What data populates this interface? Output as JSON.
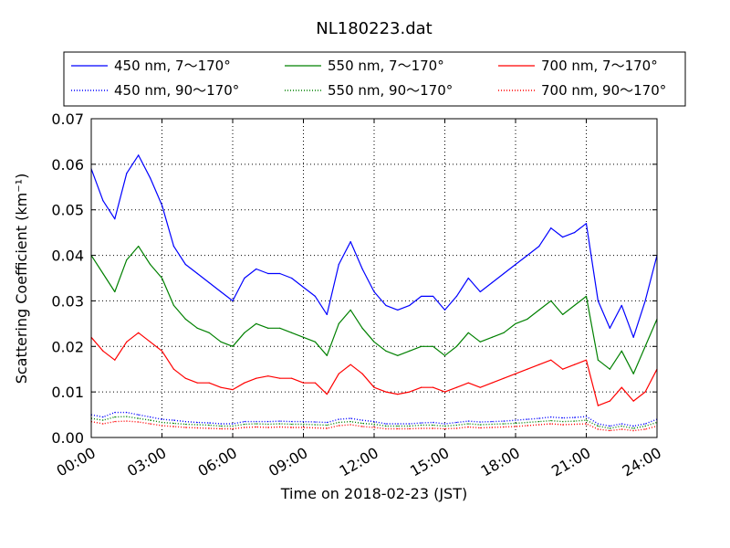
{
  "chart_data": {
    "type": "line",
    "title": "NL180223.dat",
    "xlabel": "Time on 2018-02-23 (JST)",
    "ylabel": "Scattering Coefficient (km⁻¹)",
    "x_ticks": [
      "00:00",
      "03:00",
      "06:00",
      "09:00",
      "12:00",
      "15:00",
      "18:00",
      "21:00",
      "24:00"
    ],
    "y_ticks": [
      "0.00",
      "0.01",
      "0.02",
      "0.03",
      "0.04",
      "0.05",
      "0.06",
      "0.07"
    ],
    "xlim_hours": [
      0,
      24
    ],
    "ylim": [
      0,
      0.07
    ],
    "grid": true,
    "legend_position": "top, outside plot, 3 columns",
    "x": [
      0.0,
      0.5,
      1.0,
      1.5,
      2.0,
      2.5,
      3.0,
      3.5,
      4.0,
      4.5,
      5.0,
      5.5,
      6.0,
      6.5,
      7.0,
      7.5,
      8.0,
      8.5,
      9.0,
      9.5,
      10.0,
      10.5,
      11.0,
      11.5,
      12.0,
      12.5,
      13.0,
      13.5,
      14.0,
      14.5,
      15.0,
      15.5,
      16.0,
      16.5,
      17.0,
      17.5,
      18.0,
      18.5,
      19.0,
      19.5,
      20.0,
      20.5,
      21.0,
      21.5,
      22.0,
      22.5,
      23.0,
      23.5,
      24.0
    ],
    "series": [
      {
        "name": "450 nm, 7～170°",
        "color": "#0000ff",
        "style": "solid",
        "values": [
          0.059,
          0.052,
          0.048,
          0.058,
          0.062,
          0.057,
          0.051,
          0.042,
          0.038,
          0.036,
          0.034,
          0.032,
          0.03,
          0.035,
          0.037,
          0.036,
          0.036,
          0.035,
          0.033,
          0.031,
          0.027,
          0.038,
          0.043,
          0.037,
          0.032,
          0.029,
          0.028,
          0.029,
          0.031,
          0.031,
          0.028,
          0.031,
          0.035,
          0.032,
          0.034,
          0.036,
          0.038,
          0.04,
          0.042,
          0.046,
          0.044,
          0.045,
          0.047,
          0.03,
          0.024,
          0.029,
          0.022,
          0.03,
          0.04
        ]
      },
      {
        "name": "550 nm, 7～170°",
        "color": "#008000",
        "style": "solid",
        "values": [
          0.04,
          0.036,
          0.032,
          0.039,
          0.042,
          0.038,
          0.035,
          0.029,
          0.026,
          0.024,
          0.023,
          0.021,
          0.02,
          0.023,
          0.025,
          0.024,
          0.024,
          0.023,
          0.022,
          0.021,
          0.018,
          0.025,
          0.028,
          0.024,
          0.021,
          0.019,
          0.018,
          0.019,
          0.02,
          0.02,
          0.018,
          0.02,
          0.023,
          0.021,
          0.022,
          0.023,
          0.025,
          0.026,
          0.028,
          0.03,
          0.027,
          0.029,
          0.031,
          0.017,
          0.015,
          0.019,
          0.014,
          0.02,
          0.026
        ]
      },
      {
        "name": "700 nm, 7～170°",
        "color": "#ff0000",
        "style": "solid",
        "values": [
          0.022,
          0.019,
          0.017,
          0.021,
          0.023,
          0.021,
          0.019,
          0.015,
          0.013,
          0.012,
          0.012,
          0.011,
          0.0105,
          0.012,
          0.013,
          0.0135,
          0.013,
          0.013,
          0.012,
          0.012,
          0.0095,
          0.014,
          0.016,
          0.014,
          0.011,
          0.01,
          0.0095,
          0.01,
          0.011,
          0.011,
          0.01,
          0.011,
          0.012,
          0.011,
          0.012,
          0.013,
          0.014,
          0.015,
          0.016,
          0.017,
          0.015,
          0.016,
          0.017,
          0.007,
          0.008,
          0.011,
          0.008,
          0.01,
          0.015
        ]
      },
      {
        "name": "450 nm, 90～170°",
        "color": "#0000ff",
        "style": "dotted",
        "values": [
          0.005,
          0.0045,
          0.0055,
          0.0055,
          0.005,
          0.0045,
          0.004,
          0.0038,
          0.0035,
          0.0033,
          0.0032,
          0.003,
          0.003,
          0.0035,
          0.0035,
          0.0035,
          0.0036,
          0.0035,
          0.0035,
          0.0034,
          0.0033,
          0.004,
          0.0042,
          0.0038,
          0.0035,
          0.003,
          0.003,
          0.003,
          0.0032,
          0.0033,
          0.003,
          0.0033,
          0.0036,
          0.0034,
          0.0035,
          0.0036,
          0.0038,
          0.004,
          0.0042,
          0.0045,
          0.0043,
          0.0044,
          0.0046,
          0.003,
          0.0025,
          0.003,
          0.0025,
          0.003,
          0.004
        ]
      },
      {
        "name": "550 nm, 90～170°",
        "color": "#008000",
        "style": "dotted",
        "values": [
          0.0042,
          0.0038,
          0.0045,
          0.0046,
          0.0042,
          0.0038,
          0.0033,
          0.0031,
          0.0029,
          0.0028,
          0.0027,
          0.0025,
          0.0025,
          0.0029,
          0.003,
          0.0029,
          0.003,
          0.0029,
          0.0029,
          0.0028,
          0.0027,
          0.0033,
          0.0035,
          0.0031,
          0.0029,
          0.0025,
          0.0025,
          0.0025,
          0.0027,
          0.0027,
          0.0025,
          0.0027,
          0.003,
          0.0028,
          0.0029,
          0.003,
          0.0031,
          0.0033,
          0.0035,
          0.0037,
          0.0035,
          0.0036,
          0.0038,
          0.0025,
          0.002,
          0.0025,
          0.002,
          0.0025,
          0.0033
        ]
      },
      {
        "name": "700 nm, 90～170°",
        "color": "#ff0000",
        "style": "dotted",
        "values": [
          0.0035,
          0.003,
          0.0035,
          0.0036,
          0.0034,
          0.003,
          0.0026,
          0.0024,
          0.0022,
          0.0021,
          0.002,
          0.0019,
          0.0019,
          0.0022,
          0.0023,
          0.0022,
          0.0023,
          0.0022,
          0.0022,
          0.0021,
          0.002,
          0.0026,
          0.0028,
          0.0024,
          0.0022,
          0.0019,
          0.0019,
          0.0019,
          0.002,
          0.002,
          0.0019,
          0.002,
          0.0023,
          0.0021,
          0.0022,
          0.0023,
          0.0024,
          0.0026,
          0.0028,
          0.003,
          0.0028,
          0.0029,
          0.003,
          0.0018,
          0.0015,
          0.0018,
          0.0015,
          0.0018,
          0.0025
        ]
      }
    ]
  }
}
